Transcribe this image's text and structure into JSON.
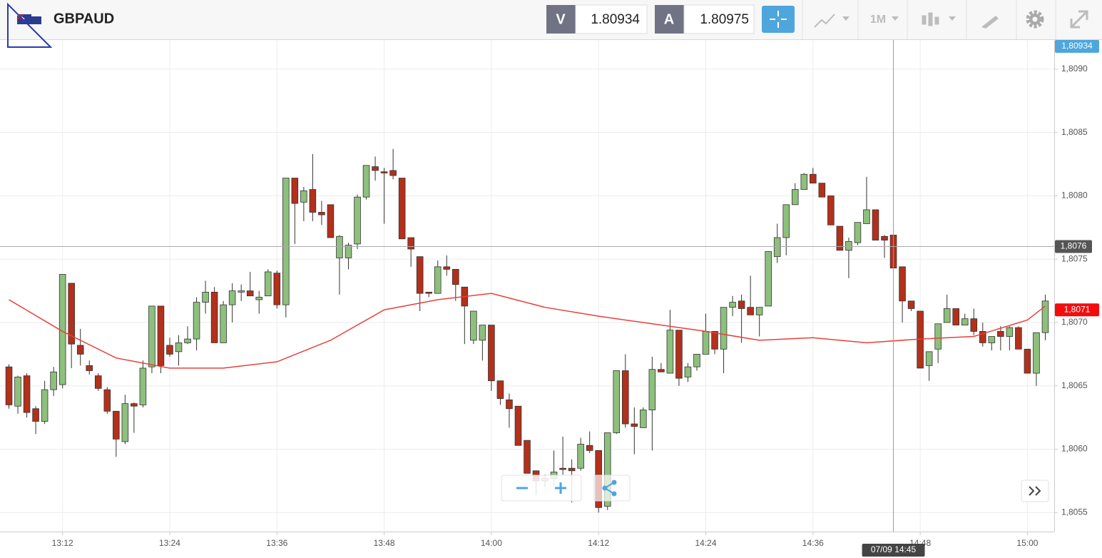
{
  "header": {
    "symbol": "GBPAUD",
    "bid_label": "V",
    "bid": "1.80934",
    "ask_label": "A",
    "ask": "1.80975",
    "timeframe": "1M"
  },
  "chart_data": {
    "type": "candlestick",
    "x": [
      "13:06",
      "13:07",
      "13:08",
      "13:09",
      "13:10",
      "13:11",
      "13:12",
      "13:13",
      "13:14",
      "13:15",
      "13:16",
      "13:17",
      "13:18",
      "13:19",
      "13:20",
      "13:21",
      "13:22",
      "13:23",
      "13:24",
      "13:25",
      "13:26",
      "13:27",
      "13:28",
      "13:29",
      "13:30",
      "13:31",
      "13:32",
      "13:33",
      "13:34",
      "13:35",
      "13:36",
      "13:37",
      "13:38",
      "13:39",
      "13:40",
      "13:41",
      "13:42",
      "13:43",
      "13:44",
      "13:45",
      "13:46",
      "13:47",
      "13:48",
      "13:49",
      "13:50",
      "13:51",
      "13:52",
      "13:53",
      "13:54",
      "13:55",
      "13:56",
      "13:57",
      "13:58",
      "13:59",
      "14:00",
      "14:01",
      "14:02",
      "14:03",
      "14:04",
      "14:05",
      "14:06",
      "14:07",
      "14:08",
      "14:09",
      "14:10",
      "14:11",
      "14:12",
      "14:13",
      "14:14",
      "14:15",
      "14:16",
      "14:17",
      "14:18",
      "14:19",
      "14:20",
      "14:21",
      "14:22",
      "14:23",
      "14:24",
      "14:25",
      "14:26",
      "14:27",
      "14:28",
      "14:29",
      "14:30",
      "14:31",
      "14:32",
      "14:33",
      "14:34",
      "14:35",
      "14:36",
      "14:37",
      "14:38",
      "14:39",
      "14:40",
      "14:41",
      "14:42",
      "14:43",
      "14:44",
      "14:45",
      "14:46",
      "14:47",
      "14:48",
      "14:49",
      "14:50",
      "14:51",
      "14:52",
      "14:53",
      "14:54",
      "14:55",
      "14:56",
      "14:57",
      "14:58",
      "14:59",
      "15:00",
      "15:01",
      "15:02"
    ],
    "open": [
      1.80665,
      1.80634,
      1.80658,
      1.80632,
      1.80622,
      1.80647,
      1.80651,
      1.80731,
      1.80682,
      1.80666,
      1.80658,
      1.80647,
      1.8063,
      1.80606,
      1.80636,
      1.80635,
      1.80665,
      1.80713,
      1.80682,
      1.80677,
      1.80684,
      1.80687,
      1.80716,
      1.80724,
      1.80684,
      1.80714,
      1.80724,
      1.80725,
      1.80718,
      1.80721,
      1.80739,
      1.80714,
      1.80814,
      1.80795,
      1.80805,
      1.80787,
      1.80793,
      1.80751,
      1.80751,
      1.80762,
      1.80799,
      1.80823,
      1.80819,
      1.8082,
      1.80814,
      1.80767,
      1.80752,
      1.80724,
      1.80723,
      1.80744,
      1.80742,
      1.80728,
      1.80686,
      1.80686,
      1.80698,
      1.80654,
      1.80639,
      1.80634,
      1.80607,
      1.80583,
      1.80575,
      1.80577,
      1.80585,
      1.80585,
      1.80585,
      1.80603,
      1.80599,
      1.80555,
      1.80613,
      1.80662,
      1.8062,
      1.80617,
      1.80631,
      1.80663,
      1.8066,
      1.80694,
      1.80657,
      1.80665,
      1.80675,
      1.80693,
      1.80679,
      1.80712,
      1.80717,
      1.80712,
      1.80706,
      1.80713,
      1.80752,
      1.80767,
      1.80793,
      1.80805,
      1.80817,
      1.8081,
      1.808,
      1.80776,
      1.80757,
      1.80763,
      1.80778,
      1.80789,
      1.80768,
      1.80769,
      1.80744,
      1.80717,
      1.80709,
      1.80666,
      1.80679,
      1.807,
      1.80711,
      1.80698,
      1.80703,
      1.80693,
      1.80684,
      1.80693,
      1.80689,
      1.80696,
      1.80679,
      1.8066,
      1.80692
    ],
    "high": [
      1.80667,
      1.80658,
      1.8066,
      1.80634,
      1.80654,
      1.80665,
      1.80738,
      1.80731,
      1.80695,
      1.8067,
      1.8066,
      1.80649,
      1.8063,
      1.80643,
      1.80637,
      1.8067,
      1.80713,
      1.80713,
      1.80688,
      1.8069,
      1.80697,
      1.8072,
      1.80733,
      1.80728,
      1.80717,
      1.80731,
      1.8073,
      1.8074,
      1.80725,
      1.80742,
      1.80741,
      1.80814,
      1.80814,
      1.80807,
      1.80833,
      1.80796,
      1.80793,
      1.80769,
      1.80763,
      1.80801,
      1.80824,
      1.80831,
      1.80822,
      1.80837,
      1.80814,
      1.80767,
      1.80752,
      1.80724,
      1.80749,
      1.80753,
      1.80742,
      1.80728,
      1.80709,
      1.80698,
      1.80698,
      1.80654,
      1.80644,
      1.80634,
      1.80607,
      1.80583,
      1.8058,
      1.80599,
      1.8061,
      1.80592,
      1.80609,
      1.80614,
      1.80599,
      1.80613,
      1.80662,
      1.80675,
      1.80633,
      1.80633,
      1.80673,
      1.80668,
      1.8071,
      1.80694,
      1.80668,
      1.80675,
      1.80707,
      1.80693,
      1.80712,
      1.80721,
      1.80722,
      1.80737,
      1.80712,
      1.80756,
      1.80778,
      1.80793,
      1.8081,
      1.80818,
      1.80822,
      1.8081,
      1.808,
      1.80776,
      1.80767,
      1.80779,
      1.80815,
      1.80789,
      1.80769,
      1.80769,
      1.80744,
      1.80717,
      1.80709,
      1.80677,
      1.80699,
      1.80722,
      1.80711,
      1.80707,
      1.80711,
      1.807,
      1.80689,
      1.80697,
      1.80697,
      1.80697,
      1.80679,
      1.80692,
      1.80722
    ],
    "low": [
      1.80632,
      1.80628,
      1.80625,
      1.80612,
      1.8062,
      1.80642,
      1.80648,
      1.80664,
      1.80666,
      1.80659,
      1.80646,
      1.80628,
      1.80594,
      1.80604,
      1.80613,
      1.80633,
      1.8066,
      1.8066,
      1.80673,
      1.80666,
      1.80683,
      1.80678,
      1.80707,
      1.80684,
      1.80684,
      1.807,
      1.80717,
      1.80721,
      1.80707,
      1.80721,
      1.80711,
      1.80704,
      1.80762,
      1.8078,
      1.8078,
      1.80777,
      1.80767,
      1.80722,
      1.80742,
      1.80758,
      1.80797,
      1.80812,
      1.80778,
      1.80813,
      1.80766,
      1.80744,
      1.80709,
      1.8072,
      1.80723,
      1.80737,
      1.80717,
      1.80683,
      1.80683,
      1.8067,
      1.80646,
      1.80635,
      1.80617,
      1.80603,
      1.80581,
      1.80564,
      1.8057,
      1.80571,
      1.8058,
      1.80558,
      1.80583,
      1.80597,
      1.8055,
      1.80552,
      1.80612,
      1.80617,
      1.80596,
      1.80617,
      1.80599,
      1.80661,
      1.8066,
      1.8065,
      1.80653,
      1.80662,
      1.80675,
      1.80675,
      1.8066,
      1.80705,
      1.80684,
      1.80706,
      1.80689,
      1.80713,
      1.80747,
      1.80753,
      1.80793,
      1.80805,
      1.8081,
      1.80799,
      1.80777,
      1.80757,
      1.80735,
      1.80761,
      1.80778,
      1.80765,
      1.80751,
      1.80743,
      1.807,
      1.80709,
      1.80664,
      1.80654,
      1.80668,
      1.807,
      1.80698,
      1.80698,
      1.8069,
      1.80681,
      1.80678,
      1.80678,
      1.80678,
      1.80679,
      1.8066,
      1.8065,
      1.80686
    ],
    "close": [
      1.80635,
      1.80657,
      1.80629,
      1.80622,
      1.80647,
      1.80661,
      1.80738,
      1.80683,
      1.80675,
      1.80662,
      1.80648,
      1.8063,
      1.80608,
      1.80636,
      1.80634,
      1.80664,
      1.80713,
      1.80666,
      1.80675,
      1.80684,
      1.80687,
      1.80716,
      1.80724,
      1.80684,
      1.80714,
      1.80725,
      1.80725,
      1.80721,
      1.8072,
      1.8074,
      1.80714,
      1.80814,
      1.80794,
      1.80804,
      1.80787,
      1.80785,
      1.80767,
      1.80768,
      1.80761,
      1.80799,
      1.80824,
      1.8082,
      1.80818,
      1.80816,
      1.80766,
      1.80758,
      1.80723,
      1.80723,
      1.80744,
      1.80742,
      1.8073,
      1.80713,
      1.80709,
      1.80698,
      1.80654,
      1.8064,
      1.80632,
      1.80603,
      1.80581,
      1.80575,
      1.80577,
      1.80582,
      1.80584,
      1.80583,
      1.80604,
      1.80599,
      1.80554,
      1.80613,
      1.80662,
      1.8062,
      1.80618,
      1.80631,
      1.80663,
      1.80661,
      1.80694,
      1.80656,
      1.80665,
      1.80675,
      1.80693,
      1.80679,
      1.80712,
      1.80716,
      1.80711,
      1.80706,
      1.80712,
      1.80756,
      1.80767,
      1.80793,
      1.80805,
      1.80817,
      1.8081,
      1.80799,
      1.80777,
      1.80757,
      1.80764,
      1.80779,
      1.80789,
      1.80765,
      1.80765,
      1.80743,
      1.80717,
      1.80711,
      1.80664,
      1.80677,
      1.80699,
      1.80711,
      1.80698,
      1.80703,
      1.80693,
      1.80684,
      1.80689,
      1.80689,
      1.80696,
      1.80679,
      1.8066,
      1.80692,
      1.80717
    ],
    "up_color": "#8dc07c",
    "down_color": "#b3301b",
    "moving_average": {
      "x": [
        "13:06",
        "13:12",
        "13:18",
        "13:24",
        "13:30",
        "13:36",
        "13:42",
        "13:48",
        "13:54",
        "14:00",
        "14:06",
        "14:12",
        "14:18",
        "14:24",
        "14:30",
        "14:36",
        "14:42",
        "14:48",
        "14:54",
        "15:00",
        "15:02"
      ],
      "values": [
        1.80718,
        1.80693,
        1.80672,
        1.80664,
        1.80664,
        1.80669,
        1.80686,
        1.8071,
        1.80718,
        1.80723,
        1.80712,
        1.80705,
        1.80699,
        1.80693,
        1.80686,
        1.80688,
        1.80684,
        1.80687,
        1.80689,
        1.80702,
        1.80713
      ],
      "color": "#e8403a"
    },
    "xlim": [
      "13:05",
      "15:03"
    ],
    "xticks": [
      "13:12",
      "13:24",
      "13:36",
      "13:48",
      "14:00",
      "14:12",
      "14:24",
      "14:36",
      "14:48",
      "15:00"
    ],
    "ylim": [
      1.80535,
      1.80923
    ],
    "yticks": [
      {
        "value": 1.8055,
        "label": "1,8055"
      },
      {
        "value": 1.806,
        "label": "1,8060"
      },
      {
        "value": 1.8065,
        "label": "1,8065"
      },
      {
        "value": 1.807,
        "label": "1,8070"
      },
      {
        "value": 1.8075,
        "label": "1,8075"
      },
      {
        "value": 1.808,
        "label": "1,8080"
      },
      {
        "value": 1.8085,
        "label": "1,8085"
      },
      {
        "value": 1.809,
        "label": "1,8090"
      }
    ],
    "grid": true,
    "price_badges": [
      {
        "value": 1.80934,
        "label": "1,80934",
        "color": "#4ea6dc"
      },
      {
        "value": 1.8071,
        "label": "1,8071",
        "color": "#f20d0d"
      }
    ],
    "crosshair": {
      "x": "14:45",
      "x_label": "07/09 14:45",
      "y": 1.8076,
      "y_label": "1,8076"
    }
  }
}
